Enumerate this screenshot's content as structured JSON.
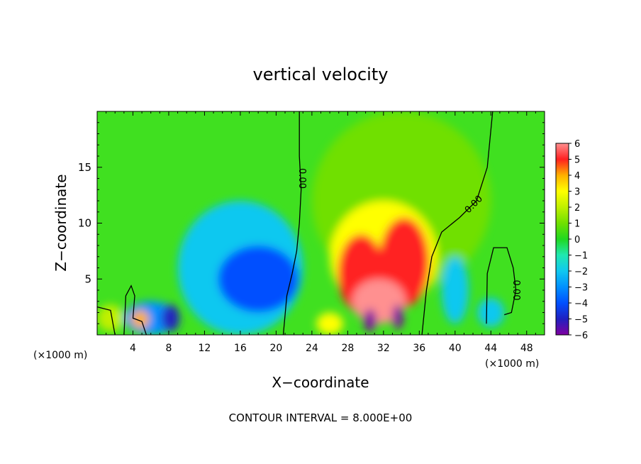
{
  "chart_data": {
    "type": "heatmap",
    "title": "vertical velocity",
    "xlabel": "X−coordinate",
    "ylabel": "Z−coordinate",
    "x_unit_left": "(×1000 m)",
    "x_unit_right": "(×1000 m)",
    "footer": "CONTOUR INTERVAL = 8.000E+00",
    "xlim": [
      0,
      50
    ],
    "ylim": [
      0,
      20
    ],
    "x_ticks": [
      4,
      8,
      12,
      16,
      20,
      24,
      28,
      32,
      36,
      40,
      44,
      48
    ],
    "x_tick_labels": [
      "4",
      "8",
      "12",
      "16",
      "20",
      "24",
      "28",
      "32",
      "36",
      "40",
      "44",
      "48"
    ],
    "y_ticks": [
      5,
      10,
      15
    ],
    "y_tick_labels": [
      "5",
      "10",
      "15"
    ],
    "colorbar": {
      "min": -6,
      "max": 6,
      "tick_values": [
        6,
        5,
        4,
        3,
        2,
        1,
        0,
        -1,
        -2,
        -3,
        -4,
        -5,
        -6
      ],
      "tick_labels": [
        "6",
        "5",
        "4",
        "3",
        "2",
        "1",
        "0",
        "−1",
        "−2",
        "−3",
        "−4",
        "−5",
        "−6"
      ]
    },
    "contour_labels": [
      {
        "text": "0.00",
        "x": 22.6,
        "z": 14.0
      },
      {
        "text": "0.00",
        "x": 42.3,
        "z": 11.5
      },
      {
        "text": "0.00",
        "x": 46.5,
        "z": 4.0
      }
    ],
    "features": [
      {
        "kind": "updraft",
        "x": 29.5,
        "z": 5.0,
        "amplitude": 6.0
      },
      {
        "kind": "updraft",
        "x": 34.0,
        "z": 6.5,
        "amplitude": 5.5
      },
      {
        "kind": "downdraft",
        "x": 18.0,
        "z": 5.0,
        "amplitude": -4.0
      },
      {
        "kind": "downdraft",
        "x": 8.0,
        "z": 1.5,
        "amplitude": -4.5
      },
      {
        "kind": "downdraft",
        "x": 30.5,
        "z": 1.2,
        "amplitude": -6.0
      },
      {
        "kind": "downdraft",
        "x": 33.6,
        "z": 1.5,
        "amplitude": -6.0
      },
      {
        "kind": "downdraft",
        "x": 40.0,
        "z": 3.5,
        "amplitude": -2.5
      }
    ]
  },
  "colors": {
    "scale": [
      "#7f00a0",
      "#2020c0",
      "#0050ff",
      "#0090ff",
      "#10c8f0",
      "#20e8b0",
      "#20d820",
      "#70e000",
      "#c0f000",
      "#ffff00",
      "#ffb000",
      "#ff2020",
      "#ff9090"
    ]
  }
}
